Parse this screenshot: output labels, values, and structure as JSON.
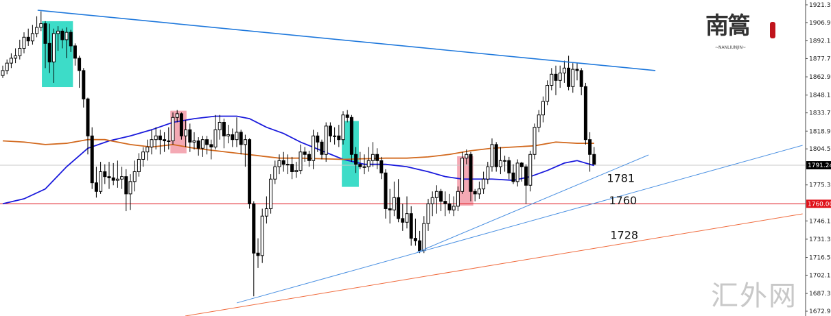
{
  "chart_data": {
    "type": "candlestick",
    "title": "",
    "y_axis": {
      "range": [
        1672.9,
        1921.3
      ],
      "ticks": [
        "1921.30",
        "1906.90",
        "1892.10",
        "1877.70",
        "1862.90",
        "1848.10",
        "1833.70",
        "1818.90",
        "1804.50",
        "1775.30",
        "1746.10",
        "1731.30",
        "1716.50",
        "1702.10",
        "1687.30",
        "1672.90"
      ],
      "position": "right"
    },
    "current_price": {
      "value": 1791.24,
      "label": "1791.24",
      "color": "#000000"
    },
    "support_line": {
      "value": 1760.0,
      "label": "1760.00",
      "color": "#e0141c"
    },
    "candles": [
      [
        1864,
        1872,
        1862,
        1868
      ],
      [
        1868,
        1877,
        1865,
        1874
      ],
      [
        1874,
        1882,
        1870,
        1878
      ],
      [
        1878,
        1886,
        1874,
        1880
      ],
      [
        1880,
        1893,
        1877,
        1886
      ],
      [
        1886,
        1899,
        1882,
        1895
      ],
      [
        1895,
        1902,
        1888,
        1892
      ],
      [
        1892,
        1905,
        1889,
        1898
      ],
      [
        1898,
        1912,
        1895,
        1903
      ],
      [
        1903,
        1916,
        1900,
        1906
      ],
      [
        1906,
        1908,
        1870,
        1890
      ],
      [
        1890,
        1906,
        1866,
        1875
      ],
      [
        1875,
        1902,
        1858,
        1898
      ],
      [
        1898,
        1904,
        1884,
        1900
      ],
      [
        1900,
        1902,
        1886,
        1893
      ],
      [
        1893,
        1903,
        1878,
        1899
      ],
      [
        1899,
        1901,
        1883,
        1888
      ],
      [
        1888,
        1890,
        1872,
        1878
      ],
      [
        1878,
        1880,
        1854,
        1868
      ],
      [
        1868,
        1870,
        1838,
        1845
      ],
      [
        1845,
        1846,
        1800,
        1815
      ],
      [
        1815,
        1822,
        1772,
        1777
      ],
      [
        1777,
        1790,
        1765,
        1770
      ],
      [
        1770,
        1794,
        1768,
        1786
      ],
      [
        1786,
        1792,
        1776,
        1782
      ],
      [
        1782,
        1794,
        1772,
        1781
      ],
      [
        1781,
        1793,
        1775,
        1779
      ],
      [
        1779,
        1795,
        1773,
        1780
      ],
      [
        1780,
        1790,
        1772,
        1782
      ],
      [
        1782,
        1788,
        1754,
        1768
      ],
      [
        1768,
        1784,
        1755,
        1778
      ],
      [
        1778,
        1795,
        1770,
        1786
      ],
      [
        1786,
        1801,
        1782,
        1796
      ],
      [
        1796,
        1806,
        1790,
        1802
      ],
      [
        1802,
        1812,
        1795,
        1806
      ],
      [
        1806,
        1820,
        1800,
        1812
      ],
      [
        1812,
        1822,
        1804,
        1815
      ],
      [
        1815,
        1820,
        1800,
        1812
      ],
      [
        1812,
        1818,
        1802,
        1811
      ],
      [
        1811,
        1822,
        1804,
        1811
      ],
      [
        1811,
        1834,
        1808,
        1830
      ],
      [
        1830,
        1836,
        1826,
        1833
      ],
      [
        1833,
        1834,
        1812,
        1815
      ],
      [
        1815,
        1828,
        1806,
        1820
      ],
      [
        1820,
        1825,
        1802,
        1810
      ],
      [
        1810,
        1818,
        1804,
        1811
      ],
      [
        1811,
        1814,
        1799,
        1805
      ],
      [
        1805,
        1815,
        1798,
        1812
      ],
      [
        1812,
        1815,
        1800,
        1808
      ],
      [
        1808,
        1812,
        1796,
        1806
      ],
      [
        1806,
        1832,
        1804,
        1820
      ],
      [
        1820,
        1832,
        1812,
        1826
      ],
      [
        1826,
        1829,
        1805,
        1815
      ],
      [
        1815,
        1824,
        1809,
        1816
      ],
      [
        1816,
        1821,
        1806,
        1812
      ],
      [
        1812,
        1830,
        1806,
        1818
      ],
      [
        1818,
        1820,
        1800,
        1808
      ],
      [
        1808,
        1816,
        1790,
        1812
      ],
      [
        1812,
        1813,
        1756,
        1760
      ],
      [
        1760,
        1762,
        1685,
        1720
      ],
      [
        1720,
        1732,
        1708,
        1718
      ],
      [
        1718,
        1756,
        1712,
        1750
      ],
      [
        1750,
        1766,
        1744,
        1756
      ],
      [
        1756,
        1784,
        1752,
        1780
      ],
      [
        1780,
        1795,
        1776,
        1790
      ],
      [
        1790,
        1800,
        1784,
        1795
      ],
      [
        1795,
        1802,
        1786,
        1792
      ],
      [
        1792,
        1800,
        1784,
        1792
      ],
      [
        1792,
        1798,
        1780,
        1786
      ],
      [
        1786,
        1794,
        1781,
        1787
      ],
      [
        1787,
        1808,
        1784,
        1802
      ],
      [
        1802,
        1806,
        1794,
        1800
      ],
      [
        1800,
        1803,
        1790,
        1795
      ],
      [
        1795,
        1820,
        1788,
        1815
      ],
      [
        1815,
        1818,
        1802,
        1810
      ],
      [
        1810,
        1812,
        1796,
        1800
      ],
      [
        1800,
        1826,
        1794,
        1823
      ],
      [
        1823,
        1826,
        1810,
        1815
      ],
      [
        1815,
        1822,
        1808,
        1815
      ],
      [
        1815,
        1824,
        1806,
        1812
      ],
      [
        1812,
        1835,
        1808,
        1832
      ],
      [
        1832,
        1836,
        1826,
        1830
      ],
      [
        1830,
        1832,
        1794,
        1800
      ],
      [
        1800,
        1806,
        1785,
        1792
      ],
      [
        1792,
        1802,
        1788,
        1790
      ],
      [
        1790,
        1800,
        1784,
        1790
      ],
      [
        1790,
        1806,
        1786,
        1795
      ],
      [
        1795,
        1810,
        1790,
        1800
      ],
      [
        1800,
        1805,
        1788,
        1795
      ],
      [
        1795,
        1798,
        1780,
        1785
      ],
      [
        1785,
        1788,
        1748,
        1756
      ],
      [
        1756,
        1772,
        1744,
        1755
      ],
      [
        1755,
        1778,
        1750,
        1765
      ],
      [
        1765,
        1780,
        1745,
        1748
      ],
      [
        1748,
        1760,
        1738,
        1745
      ],
      [
        1745,
        1766,
        1740,
        1752
      ],
      [
        1752,
        1758,
        1726,
        1732
      ],
      [
        1732,
        1748,
        1726,
        1730
      ],
      [
        1730,
        1738,
        1720,
        1722
      ],
      [
        1722,
        1750,
        1720,
        1744
      ],
      [
        1744,
        1764,
        1738,
        1760
      ],
      [
        1760,
        1770,
        1750,
        1765
      ],
      [
        1765,
        1775,
        1752,
        1770
      ],
      [
        1770,
        1772,
        1754,
        1762
      ],
      [
        1762,
        1770,
        1750,
        1760
      ],
      [
        1760,
        1768,
        1752,
        1755
      ],
      [
        1755,
        1766,
        1750,
        1758
      ],
      [
        1758,
        1774,
        1754,
        1770
      ],
      [
        1770,
        1802,
        1768,
        1797
      ],
      [
        1797,
        1804,
        1792,
        1800
      ],
      [
        1800,
        1802,
        1762,
        1770
      ],
      [
        1770,
        1772,
        1762,
        1768
      ],
      [
        1768,
        1778,
        1764,
        1772
      ],
      [
        1772,
        1786,
        1768,
        1780
      ],
      [
        1780,
        1794,
        1776,
        1790
      ],
      [
        1790,
        1813,
        1786,
        1808
      ],
      [
        1808,
        1810,
        1786,
        1790
      ],
      [
        1790,
        1806,
        1784,
        1795
      ],
      [
        1795,
        1799,
        1786,
        1795
      ],
      [
        1795,
        1798,
        1780,
        1785
      ],
      [
        1785,
        1792,
        1776,
        1778
      ],
      [
        1778,
        1796,
        1774,
        1793
      ],
      [
        1793,
        1794,
        1778,
        1790
      ],
      [
        1790,
        1792,
        1760,
        1775
      ],
      [
        1775,
        1803,
        1770,
        1800
      ],
      [
        1800,
        1825,
        1796,
        1822
      ],
      [
        1822,
        1836,
        1818,
        1832
      ],
      [
        1832,
        1847,
        1826,
        1843
      ],
      [
        1843,
        1860,
        1840,
        1856
      ],
      [
        1856,
        1870,
        1852,
        1865
      ],
      [
        1865,
        1872,
        1848,
        1860
      ],
      [
        1860,
        1872,
        1854,
        1866
      ],
      [
        1866,
        1876,
        1858,
        1870
      ],
      [
        1870,
        1880,
        1852,
        1855
      ],
      [
        1855,
        1874,
        1850,
        1869
      ],
      [
        1869,
        1874,
        1860,
        1868
      ],
      [
        1868,
        1870,
        1848,
        1855
      ],
      [
        1855,
        1858,
        1808,
        1812
      ],
      [
        1812,
        1818,
        1786,
        1800
      ],
      [
        1800,
        1806,
        1792,
        1792
      ]
    ],
    "moving_averages": [
      {
        "color": "#1a1adc",
        "points": [
          [
            0,
            1760
          ],
          [
            5,
            1764
          ],
          [
            10,
            1772
          ],
          [
            15,
            1790
          ],
          [
            20,
            1805
          ],
          [
            25,
            1811
          ],
          [
            30,
            1815
          ],
          [
            35,
            1820
          ],
          [
            40,
            1826
          ],
          [
            45,
            1829
          ],
          [
            50,
            1831
          ],
          [
            55,
            1831
          ],
          [
            58,
            1829
          ],
          [
            62,
            1822
          ],
          [
            66,
            1817
          ],
          [
            70,
            1810
          ],
          [
            75,
            1803
          ],
          [
            80,
            1796
          ],
          [
            85,
            1792
          ],
          [
            90,
            1792
          ],
          [
            95,
            1790
          ],
          [
            100,
            1786
          ],
          [
            104,
            1782
          ],
          [
            108,
            1780
          ],
          [
            115,
            1780
          ],
          [
            120,
            1779
          ],
          [
            124,
            1782
          ],
          [
            128,
            1787
          ],
          [
            132,
            1793
          ],
          [
            135,
            1795
          ],
          [
            139,
            1791
          ]
        ]
      },
      {
        "color": "#d2691e",
        "points": [
          [
            0,
            1811
          ],
          [
            5,
            1810
          ],
          [
            10,
            1808
          ],
          [
            15,
            1809
          ],
          [
            20,
            1812
          ],
          [
            24,
            1812
          ],
          [
            30,
            1808
          ],
          [
            35,
            1806
          ],
          [
            40,
            1808
          ],
          [
            45,
            1805
          ],
          [
            50,
            1803
          ],
          [
            55,
            1801
          ],
          [
            60,
            1799
          ],
          [
            65,
            1797
          ],
          [
            70,
            1797
          ],
          [
            80,
            1796
          ],
          [
            90,
            1797
          ],
          [
            95,
            1797
          ],
          [
            100,
            1798
          ],
          [
            105,
            1800
          ],
          [
            110,
            1803
          ],
          [
            115,
            1805
          ],
          [
            120,
            1806
          ],
          [
            125,
            1807
          ],
          [
            130,
            1810
          ],
          [
            135,
            1809
          ],
          [
            139,
            1809
          ]
        ]
      }
    ],
    "trendlines": [
      {
        "color": "#1e78dc",
        "from": [
          8.2,
          1916.9
        ],
        "to": [
          153.4,
          1868.0
        ]
      },
      {
        "color": "#4a90e2",
        "from": [
          55,
          1679.6
        ],
        "to": [
          188,
          1807.4
        ]
      },
      {
        "color": "#4a90e2",
        "from": [
          97.4,
          1720.7
        ],
        "to": [
          151.8,
          1799.6
        ]
      },
      {
        "color": "#f06a3c",
        "from": [
          42.9,
          1669.0
        ],
        "to": [
          188,
          1751.8
        ]
      }
    ],
    "highlight_boxes": [
      {
        "color": "#3ddcc8",
        "from_index": 9.2,
        "to_index": 16.5,
        "top": 1908.0,
        "bottom": 1854.6
      },
      {
        "color": "#f4a9b4",
        "from_index": 39.4,
        "to_index": 43.2,
        "top": 1835.4,
        "bottom": 1800.9
      },
      {
        "color": "#3ddcc8",
        "from_index": 79.7,
        "to_index": 83.7,
        "top": 1827.1,
        "bottom": 1773.7
      },
      {
        "color": "#f4a9b4",
        "from_index": 106.8,
        "to_index": 110.6,
        "top": 1798.5,
        "bottom": 1758.5
      }
    ],
    "annotations": [
      {
        "text": "1781",
        "index": 142,
        "price": 1781
      },
      {
        "text": "1760",
        "index": 142.5,
        "price": 1763
      },
      {
        "text": "1728",
        "index": 142.8,
        "price": 1735
      }
    ],
    "grid": false
  },
  "watermark": "汇外网",
  "logo": {
    "chars": "南篙",
    "sub": "~NANLIUNJIN~"
  }
}
